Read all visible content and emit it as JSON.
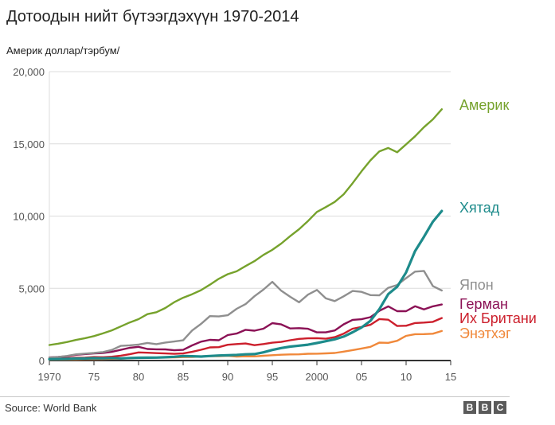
{
  "chart_data": {
    "type": "line",
    "title": "Дотоодын нийт бүтээгдэхүүн 1970-2014",
    "subtitle": "Америк доллар/тэрбум/",
    "ylim": [
      0,
      20000
    ],
    "xlim": [
      1970,
      2015
    ],
    "y_ticks": [
      "0",
      "5,000",
      "10,000",
      "15,000",
      "20,000"
    ],
    "x_ticks": [
      {
        "value": 1970,
        "label": "1970"
      },
      {
        "value": 1975,
        "label": "75"
      },
      {
        "value": 1980,
        "label": "80"
      },
      {
        "value": 1985,
        "label": "85"
      },
      {
        "value": 1990,
        "label": "90"
      },
      {
        "value": 1995,
        "label": "95"
      },
      {
        "value": 2000,
        "label": "2000"
      },
      {
        "value": 2005,
        "label": "05"
      },
      {
        "value": 2010,
        "label": "10"
      },
      {
        "value": 2015,
        "label": "15"
      }
    ],
    "grid": "horizontal",
    "x": [
      1970,
      1971,
      1972,
      1973,
      1974,
      1975,
      1976,
      1977,
      1978,
      1979,
      1980,
      1981,
      1982,
      1983,
      1984,
      1985,
      1986,
      1987,
      1988,
      1989,
      1990,
      1991,
      1992,
      1993,
      1994,
      1995,
      1996,
      1997,
      1998,
      1999,
      2000,
      2001,
      2002,
      2003,
      2004,
      2005,
      2006,
      2007,
      2008,
      2009,
      2010,
      2011,
      2012,
      2013,
      2014
    ],
    "series": [
      {
        "name": "Америк",
        "color": "#76a22c",
        "values": [
          1075,
          1167,
          1283,
          1429,
          1549,
          1689,
          1878,
          2086,
          2357,
          2632,
          2863,
          3211,
          3345,
          3638,
          4041,
          4347,
          4590,
          4870,
          5253,
          5658,
          5980,
          6174,
          6539,
          6879,
          7309,
          7664,
          8100,
          8609,
          9089,
          9661,
          10285,
          10622,
          10978,
          11511,
          12275,
          13094,
          13856,
          14478,
          14719,
          14419,
          14964,
          15518,
          16155,
          16692,
          17393
        ]
      },
      {
        "name": "Хятад",
        "color": "#1d8b8b",
        "values": [
          92,
          100,
          114,
          139,
          144,
          163,
          154,
          175,
          149,
          178,
          191,
          196,
          203,
          228,
          257,
          309,
          300,
          273,
          312,
          348,
          361,
          383,
          427,
          445,
          565,
          734,
          864,
          962,
          1029,
          1094,
          1211,
          1339,
          1471,
          1660,
          1955,
          2286,
          2752,
          3552,
          4598,
          5110,
          6101,
          7573,
          8561,
          9607,
          10352
        ]
      },
      {
        "name": "Япон",
        "color": "#8f8f8f",
        "values": [
          212,
          240,
          318,
          432,
          480,
          521,
          582,
          733,
          1012,
          1055,
          1105,
          1219,
          1134,
          1243,
          1318,
          1399,
          2077,
          2533,
          3072,
          3054,
          3133,
          3584,
          3909,
          4454,
          4907,
          5449,
          4833,
          4414,
          4032,
          4562,
          4887,
          4304,
          4116,
          4445,
          4815,
          4755,
          4530,
          4515,
          5038,
          5231,
          5700,
          6157,
          6203,
          5156,
          4849
        ]
      },
      {
        "name": "Герман",
        "color": "#8b1155",
        "values": [
          215,
          249,
          299,
          398,
          446,
          490,
          519,
          600,
          740,
          882,
          950,
          800,
          777,
          770,
          709,
          739,
          1049,
          1306,
          1433,
          1406,
          1765,
          1866,
          2124,
          2068,
          2205,
          2592,
          2504,
          2218,
          2240,
          2199,
          1950,
          1950,
          2080,
          2505,
          2816,
          2861,
          3002,
          3440,
          3753,
          3418,
          3417,
          3758,
          3544,
          3753,
          3879
        ]
      },
      {
        "name": "Их Британи",
        "color": "#cc1f2c",
        "values": [
          131,
          148,
          169,
          193,
          206,
          241,
          232,
          263,
          336,
          438,
          564,
          540,
          515,
          489,
          461,
          489,
          601,
          745,
          910,
          926,
          1093,
          1142,
          1179,
          1061,
          1141,
          1236,
          1290,
          1403,
          1499,
          1535,
          1548,
          1512,
          1622,
          1860,
          2205,
          2325,
          2475,
          2869,
          2826,
          2393,
          2407,
          2593,
          2630,
          2679,
          2942
        ]
      },
      {
        "name": "Энэтхэг",
        "color": "#f0883a",
        "values": [
          62,
          67,
          71,
          85,
          99,
          98,
          102,
          121,
          137,
          152,
          186,
          196,
          203,
          222,
          215,
          236,
          249,
          279,
          297,
          296,
          327,
          274,
          293,
          284,
          333,
          367,
          400,
          423,
          429,
          467,
          476,
          494,
          524,
          618,
          722,
          834,
          949,
          1238,
          1224,
          1365,
          1708,
          1823,
          1828,
          1857,
          2042
        ]
      }
    ],
    "labels_visible": [
      "Америк",
      "Хятад",
      "Япон",
      "Герман",
      "Их Британи",
      "Энэтхэг"
    ]
  },
  "footer": {
    "source": "Source: World Bank",
    "logo_letters": [
      "B",
      "B",
      "C"
    ]
  }
}
